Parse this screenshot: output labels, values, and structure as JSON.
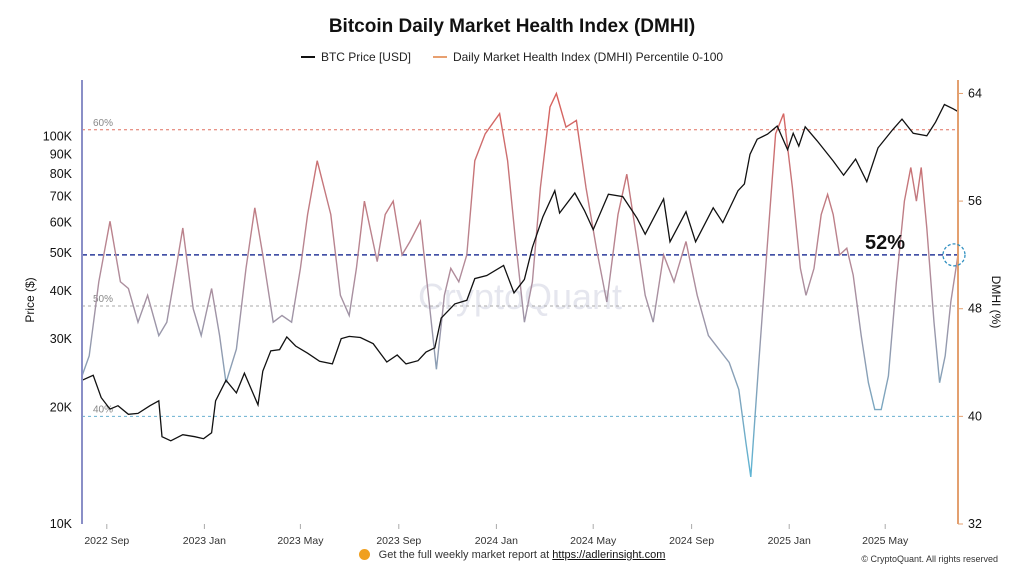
{
  "chart_data": {
    "type": "line",
    "title": "Bitcoin Daily Market Health Index (DMHI)",
    "legend": [
      {
        "label": "BTC Price [USD]",
        "color": "#111111"
      },
      {
        "label": "Daily Market Health Index (DMHI) Percentile 0-100",
        "color": "#e8a070"
      }
    ],
    "ylabel_left": "Price ($)",
    "ylabel_right": "DMHI (%)",
    "y_left_scale": "log",
    "y_left_range": [
      10000,
      140000
    ],
    "y_left_ticks": [
      {
        "v": 10000,
        "label": "10K"
      },
      {
        "v": 20000,
        "label": "20K"
      },
      {
        "v": 30000,
        "label": "30K"
      },
      {
        "v": 40000,
        "label": "40K"
      },
      {
        "v": 50000,
        "label": "50K"
      },
      {
        "v": 60000,
        "label": "60K"
      },
      {
        "v": 70000,
        "label": "70K"
      },
      {
        "v": 80000,
        "label": "80K"
      },
      {
        "v": 90000,
        "label": "90K"
      },
      {
        "v": 100000,
        "label": "100K"
      }
    ],
    "y_right_range": [
      32,
      65
    ],
    "y_right_ticks": [
      {
        "v": 32,
        "label": "32"
      },
      {
        "v": 40,
        "label": "40"
      },
      {
        "v": 48,
        "label": "48"
      },
      {
        "v": 56,
        "label": "56"
      },
      {
        "v": 64,
        "label": "64"
      }
    ],
    "x_range": [
      "2022-08-01",
      "2025-07-31"
    ],
    "x_ticks": [
      {
        "d": "2022-09-01",
        "label": "2022 Sep"
      },
      {
        "d": "2023-01-01",
        "label": "2023 Jan"
      },
      {
        "d": "2023-05-01",
        "label": "2023 May"
      },
      {
        "d": "2023-09-01",
        "label": "2023 Sep"
      },
      {
        "d": "2024-01-01",
        "label": "2024 Jan"
      },
      {
        "d": "2024-05-01",
        "label": "2024 May"
      },
      {
        "d": "2024-09-01",
        "label": "2024 Sep"
      },
      {
        "d": "2025-01-01",
        "label": "2025 Jan"
      },
      {
        "d": "2025-05-01",
        "label": "2025 May"
      }
    ],
    "ref_lines": [
      {
        "v": 61.3,
        "label": "60%",
        "color": "#e07060"
      },
      {
        "v": 52.0,
        "label": "",
        "color": "#2a3a9a"
      },
      {
        "v": 48.2,
        "label": "50%",
        "color": "#aaaaaa"
      },
      {
        "v": 40.0,
        "label": "40%",
        "color": "#6ab0d0"
      }
    ],
    "annotation": {
      "label": "52%",
      "value": 52.0
    },
    "btc_series": {
      "name": "BTC Price [USD]",
      "points": [
        [
          "2022-08-01",
          23500
        ],
        [
          "2022-08-15",
          24200
        ],
        [
          "2022-08-25",
          21200
        ],
        [
          "2022-09-05",
          19800
        ],
        [
          "2022-09-15",
          20200
        ],
        [
          "2022-09-28",
          19200
        ],
        [
          "2022-10-10",
          19300
        ],
        [
          "2022-10-25",
          20200
        ],
        [
          "2022-11-05",
          20800
        ],
        [
          "2022-11-09",
          16800
        ],
        [
          "2022-11-20",
          16400
        ],
        [
          "2022-12-05",
          17000
        ],
        [
          "2022-12-20",
          16800
        ],
        [
          "2022-12-31",
          16600
        ],
        [
          "2023-01-10",
          17200
        ],
        [
          "2023-01-15",
          20800
        ],
        [
          "2023-01-28",
          23500
        ],
        [
          "2023-02-10",
          21800
        ],
        [
          "2023-02-20",
          24500
        ],
        [
          "2023-03-09",
          20300
        ],
        [
          "2023-03-15",
          24800
        ],
        [
          "2023-03-25",
          28000
        ],
        [
          "2023-04-05",
          28200
        ],
        [
          "2023-04-14",
          30400
        ],
        [
          "2023-04-25",
          28800
        ],
        [
          "2023-05-10",
          27600
        ],
        [
          "2023-05-25",
          26300
        ],
        [
          "2023-06-10",
          25900
        ],
        [
          "2023-06-21",
          30100
        ],
        [
          "2023-07-01",
          30500
        ],
        [
          "2023-07-15",
          30300
        ],
        [
          "2023-07-31",
          29200
        ],
        [
          "2023-08-17",
          26200
        ],
        [
          "2023-08-30",
          27300
        ],
        [
          "2023-09-10",
          25900
        ],
        [
          "2023-09-25",
          26400
        ],
        [
          "2023-10-05",
          27800
        ],
        [
          "2023-10-16",
          28500
        ],
        [
          "2023-10-24",
          34000
        ],
        [
          "2023-11-10",
          37000
        ],
        [
          "2023-11-25",
          37800
        ],
        [
          "2023-12-05",
          43000
        ],
        [
          "2023-12-20",
          43800
        ],
        [
          "2024-01-10",
          46500
        ],
        [
          "2024-01-23",
          39500
        ],
        [
          "2024-02-05",
          42800
        ],
        [
          "2024-02-15",
          51800
        ],
        [
          "2024-02-28",
          62000
        ],
        [
          "2024-03-14",
          72500
        ],
        [
          "2024-03-20",
          63500
        ],
        [
          "2024-04-08",
          71500
        ],
        [
          "2024-04-20",
          64500
        ],
        [
          "2024-05-01",
          57500
        ],
        [
          "2024-05-20",
          71000
        ],
        [
          "2024-06-07",
          70000
        ],
        [
          "2024-06-25",
          61500
        ],
        [
          "2024-07-05",
          56000
        ],
        [
          "2024-07-28",
          69000
        ],
        [
          "2024-08-05",
          53500
        ],
        [
          "2024-08-25",
          64000
        ],
        [
          "2024-09-06",
          53500
        ],
        [
          "2024-09-28",
          65500
        ],
        [
          "2024-10-10",
          60000
        ],
        [
          "2024-10-29",
          72500
        ],
        [
          "2024-11-06",
          75500
        ],
        [
          "2024-11-13",
          90000
        ],
        [
          "2024-11-22",
          98500
        ],
        [
          "2024-12-05",
          101500
        ],
        [
          "2024-12-17",
          106500
        ],
        [
          "2024-12-30",
          92500
        ],
        [
          "2025-01-06",
          102000
        ],
        [
          "2025-01-13",
          94500
        ],
        [
          "2025-01-21",
          106000
        ],
        [
          "2025-02-05",
          97500
        ],
        [
          "2025-02-25",
          86500
        ],
        [
          "2025-03-10",
          79500
        ],
        [
          "2025-03-25",
          87500
        ],
        [
          "2025-04-08",
          76500
        ],
        [
          "2025-04-22",
          93500
        ],
        [
          "2025-05-10",
          104000
        ],
        [
          "2025-05-22",
          111000
        ],
        [
          "2025-06-05",
          102000
        ],
        [
          "2025-06-22",
          100500
        ],
        [
          "2025-07-03",
          109000
        ],
        [
          "2025-07-14",
          121000
        ],
        [
          "2025-07-25",
          118000
        ],
        [
          "2025-07-31",
          116000
        ]
      ]
    },
    "dmhi_series": {
      "name": "Daily Market Health Index (DMHI) Percentile 0-100",
      "points": [
        [
          "2022-08-01",
          43
        ],
        [
          "2022-08-10",
          44.5
        ],
        [
          "2022-08-22",
          50
        ],
        [
          "2022-09-05",
          54.5
        ],
        [
          "2022-09-18",
          50
        ],
        [
          "2022-09-28",
          49.5
        ],
        [
          "2022-10-10",
          47
        ],
        [
          "2022-10-22",
          49
        ],
        [
          "2022-11-05",
          46
        ],
        [
          "2022-11-15",
          47
        ],
        [
          "2022-11-28",
          51.5
        ],
        [
          "2022-12-05",
          54
        ],
        [
          "2022-12-18",
          48
        ],
        [
          "2022-12-28",
          46
        ],
        [
          "2023-01-10",
          49.5
        ],
        [
          "2023-01-20",
          46
        ],
        [
          "2023-01-28",
          42.5
        ],
        [
          "2023-02-10",
          45
        ],
        [
          "2023-02-22",
          51
        ],
        [
          "2023-03-05",
          55.5
        ],
        [
          "2023-03-15",
          52
        ],
        [
          "2023-03-28",
          47
        ],
        [
          "2023-04-08",
          47.5
        ],
        [
          "2023-04-20",
          47
        ],
        [
          "2023-05-01",
          51
        ],
        [
          "2023-05-10",
          55
        ],
        [
          "2023-05-22",
          59
        ],
        [
          "2023-06-08",
          55
        ],
        [
          "2023-06-20",
          49
        ],
        [
          "2023-07-01",
          47.5
        ],
        [
          "2023-07-10",
          51
        ],
        [
          "2023-07-20",
          56
        ],
        [
          "2023-08-05",
          51.5
        ],
        [
          "2023-08-15",
          55
        ],
        [
          "2023-08-25",
          56
        ],
        [
          "2023-09-05",
          52
        ],
        [
          "2023-09-15",
          53
        ],
        [
          "2023-09-28",
          54.5
        ],
        [
          "2023-10-08",
          49
        ],
        [
          "2023-10-18",
          43.5
        ],
        [
          "2023-10-28",
          49
        ],
        [
          "2023-11-05",
          51
        ],
        [
          "2023-11-15",
          50
        ],
        [
          "2023-11-25",
          52
        ],
        [
          "2023-12-05",
          59
        ],
        [
          "2023-12-18",
          61
        ],
        [
          "2024-01-05",
          62.5
        ],
        [
          "2024-01-15",
          59
        ],
        [
          "2024-01-25",
          53
        ],
        [
          "2024-02-05",
          47
        ],
        [
          "2024-02-15",
          50
        ],
        [
          "2024-02-25",
          57
        ],
        [
          "2024-03-08",
          63
        ],
        [
          "2024-03-16",
          64
        ],
        [
          "2024-03-28",
          61.5
        ],
        [
          "2024-04-10",
          62
        ],
        [
          "2024-04-22",
          57
        ],
        [
          "2024-05-05",
          52.5
        ],
        [
          "2024-05-18",
          48.5
        ],
        [
          "2024-06-01",
          55
        ],
        [
          "2024-06-12",
          58
        ],
        [
          "2024-06-25",
          53
        ],
        [
          "2024-07-05",
          49
        ],
        [
          "2024-07-15",
          47
        ],
        [
          "2024-07-28",
          52
        ],
        [
          "2024-08-10",
          50
        ],
        [
          "2024-08-25",
          53
        ],
        [
          "2024-09-08",
          49
        ],
        [
          "2024-09-22",
          46
        ],
        [
          "2024-10-05",
          45
        ],
        [
          "2024-10-18",
          44
        ],
        [
          "2024-10-30",
          42
        ],
        [
          "2024-11-08",
          38
        ],
        [
          "2024-11-14",
          35.5
        ],
        [
          "2024-11-24",
          44
        ],
        [
          "2024-12-05",
          53
        ],
        [
          "2024-12-15",
          61
        ],
        [
          "2024-12-25",
          62.5
        ],
        [
          "2025-01-05",
          57
        ],
        [
          "2025-01-15",
          51
        ],
        [
          "2025-01-22",
          49
        ],
        [
          "2025-02-01",
          51
        ],
        [
          "2025-02-10",
          55
        ],
        [
          "2025-02-18",
          56.5
        ],
        [
          "2025-02-25",
          55
        ],
        [
          "2025-03-05",
          52
        ],
        [
          "2025-03-14",
          52.5
        ],
        [
          "2025-03-22",
          50.5
        ],
        [
          "2025-04-01",
          46
        ],
        [
          "2025-04-10",
          42.5
        ],
        [
          "2025-04-18",
          40.5
        ],
        [
          "2025-04-26",
          40.5
        ],
        [
          "2025-05-05",
          43
        ],
        [
          "2025-05-15",
          50
        ],
        [
          "2025-05-25",
          56
        ],
        [
          "2025-06-02",
          58.5
        ],
        [
          "2025-06-09",
          56
        ],
        [
          "2025-06-15",
          58.5
        ],
        [
          "2025-06-22",
          54
        ],
        [
          "2025-07-01",
          47
        ],
        [
          "2025-07-08",
          42.5
        ],
        [
          "2025-07-15",
          44.5
        ],
        [
          "2025-07-22",
          48.5
        ],
        [
          "2025-07-31",
          52
        ]
      ]
    }
  },
  "watermark": "CryptoQuant",
  "footer": {
    "text": "Get the full weekly market report at",
    "link": "https://adlerinsight.com"
  },
  "copyright": "© CryptoQuant. All rights reserved"
}
